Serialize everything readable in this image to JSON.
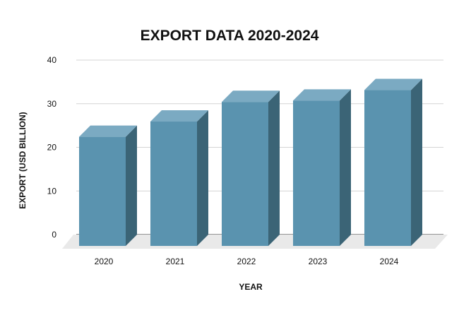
{
  "chart_data": {
    "type": "bar",
    "title": "EXPORT DATA 2020-2024",
    "xlabel": "YEAR",
    "ylabel": "EXPORT (USD BILLION)",
    "categories": [
      "2020",
      "2021",
      "2022",
      "2023",
      "2024"
    ],
    "values": [
      25,
      28.5,
      33,
      33.3,
      35.7
    ],
    "ylim": [
      0,
      40
    ],
    "yticks": [
      0,
      10,
      20,
      30,
      40
    ],
    "grid": true,
    "legend": "none",
    "style": "3d-column",
    "colors": {
      "bar_front": "#5A93AF",
      "bar_top": "#7BAAC2",
      "bar_side": "#3B6476",
      "floor": "#E9E9E9",
      "grid": "#D4D4D4",
      "axis": "#555555"
    }
  }
}
